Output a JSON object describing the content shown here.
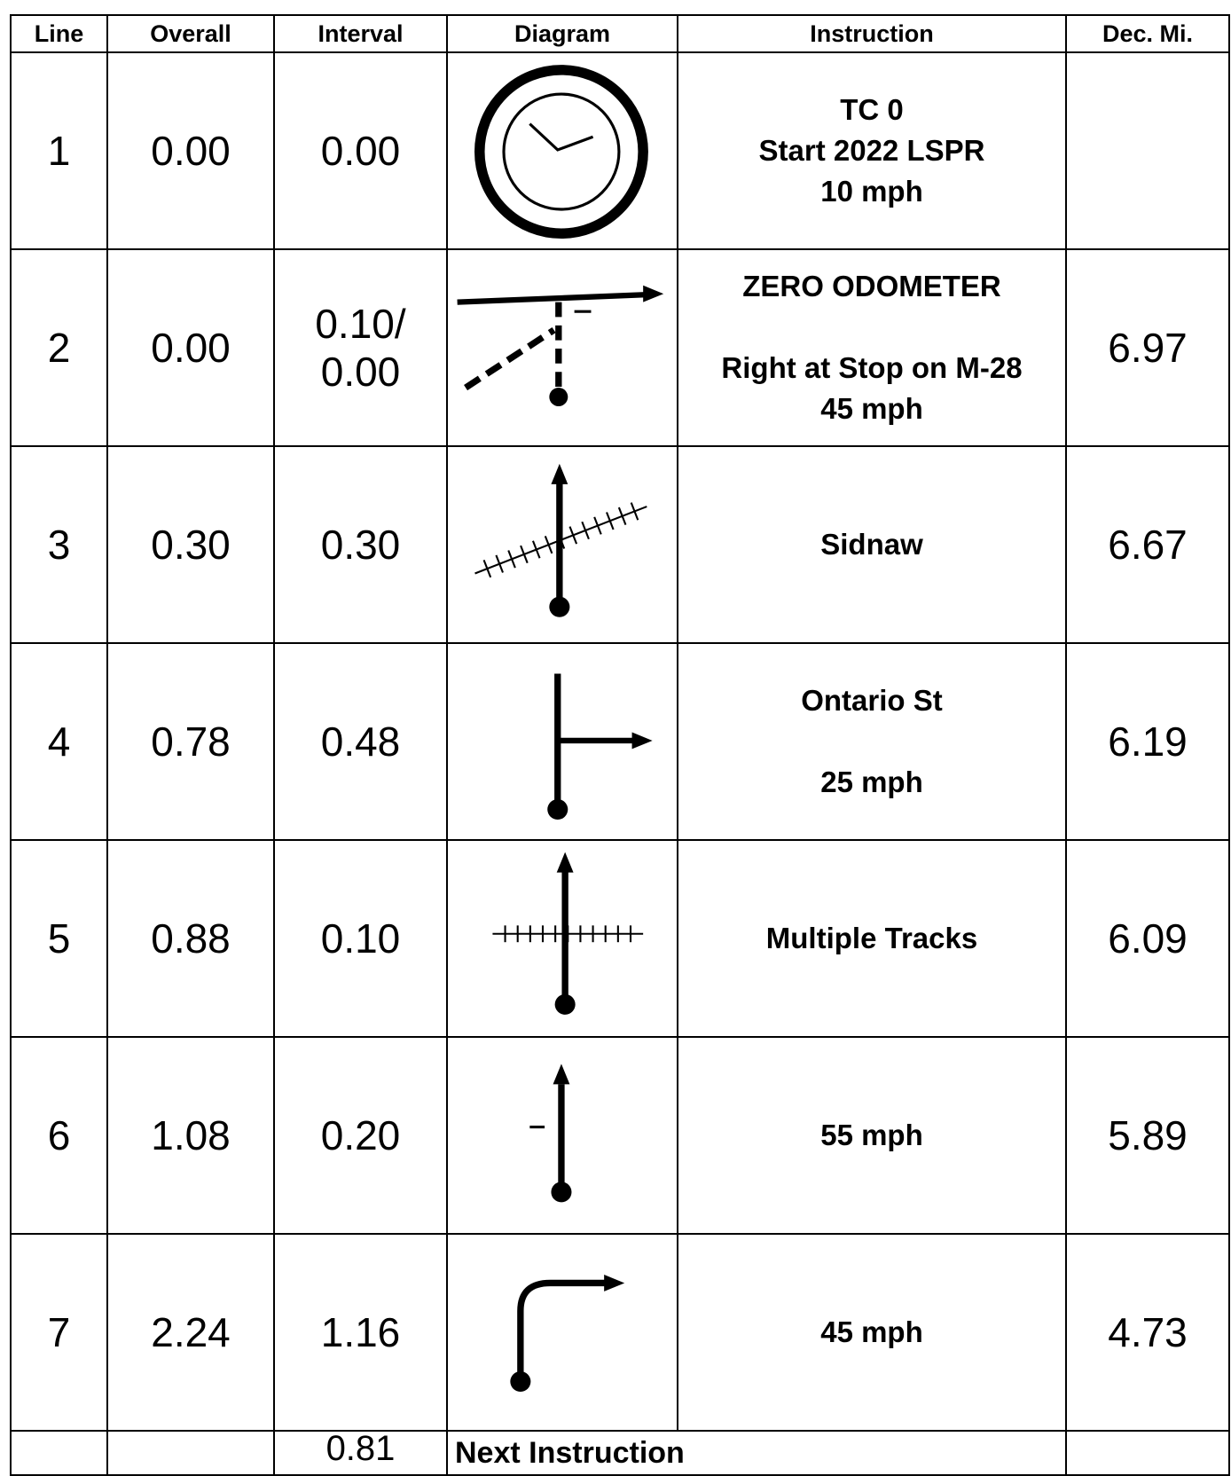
{
  "table": {
    "header": [
      "Line",
      "Overall",
      "Interval",
      "Diagram",
      "Instruction",
      "Dec. Mi."
    ],
    "rows": [
      {
        "line": "1",
        "overall": "0.00",
        "interval": [
          "0.00"
        ],
        "instruction": [
          "TC 0",
          "Start 2022 LSPR",
          "10 mph"
        ]
      },
      {
        "line": "2",
        "overall": "0.00",
        "interval": [
          "0.10/",
          "0.00"
        ],
        "instruction": [
          "ZERO ODOMETER",
          "Right at Stop on M-28",
          "45 mph"
        ],
        "dec": "6.97"
      },
      {
        "line": "3",
        "overall": "0.30",
        "interval": [
          "0.30"
        ],
        "instruction": [
          "Sidnaw"
        ],
        "dec": "6.67"
      },
      {
        "line": "4",
        "overall": "0.78",
        "interval": [
          "0.48"
        ],
        "instruction": [
          "Ontario St",
          "25 mph"
        ],
        "dec": "6.19"
      },
      {
        "line": "5",
        "overall": "0.88",
        "interval": [
          "0.10"
        ],
        "instruction": [
          "Multiple Tracks"
        ],
        "dec": "6.09"
      },
      {
        "line": "6",
        "overall": "1.08",
        "interval": [
          "0.20"
        ],
        "instruction": [
          "55 mph"
        ],
        "dec": "5.89"
      },
      {
        "line": "7",
        "overall": "2.24",
        "interval": [
          "1.16"
        ],
        "instruction": [
          "45 mph"
        ],
        "dec": "4.73"
      }
    ],
    "next": {
      "interval": "0.81",
      "instruction": "Next Instruction"
    }
  }
}
